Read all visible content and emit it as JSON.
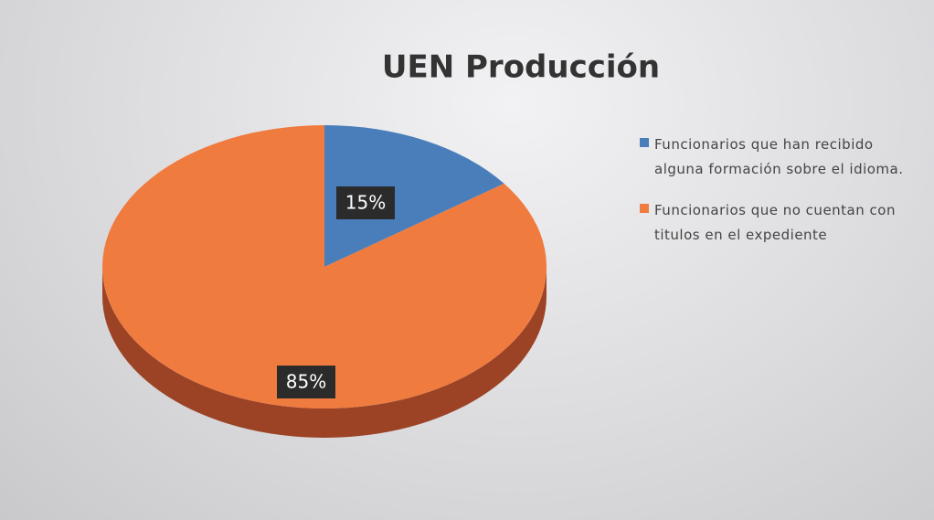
{
  "chart_data": {
    "type": "pie",
    "title": "UEN Producción",
    "categories": [
      "Funcionarios que han recibido alguna formación sobre el idioma.",
      "Funcionarios que no cuentan con titulos en el expediente"
    ],
    "values": [
      15,
      85
    ],
    "value_labels": [
      "15%",
      "85%"
    ],
    "colors": [
      "#4a7ebb",
      "#f07b3f"
    ],
    "legend": "right"
  }
}
